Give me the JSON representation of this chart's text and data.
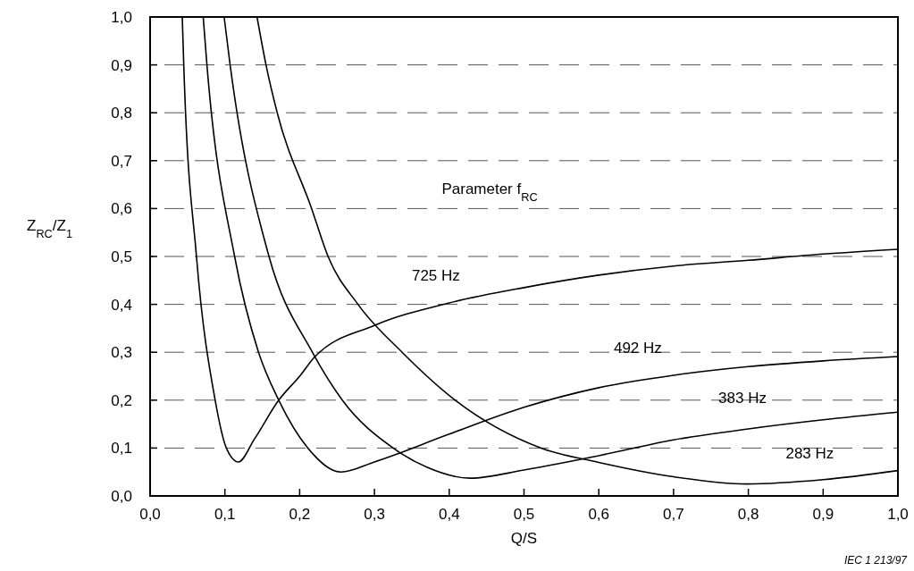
{
  "chart_data": {
    "type": "line",
    "xlabel": "Q/S",
    "ylabel": "Z$_{RC}$/Z$_{1}$",
    "xlim": [
      0,
      1
    ],
    "ylim": [
      0,
      1
    ],
    "xticks": [
      {
        "value": 0,
        "label": "0,0"
      },
      {
        "value": 0.1,
        "label": "0,1"
      },
      {
        "value": 0.2,
        "label": "0,2"
      },
      {
        "value": 0.3,
        "label": "0,3"
      },
      {
        "value": 0.4,
        "label": "0,4"
      },
      {
        "value": 0.5,
        "label": "0,5"
      },
      {
        "value": 0.6,
        "label": "0,6"
      },
      {
        "value": 0.7,
        "label": "0,7"
      },
      {
        "value": 0.8,
        "label": "0,8"
      },
      {
        "value": 0.9,
        "label": "0,9"
      },
      {
        "value": 1,
        "label": "1,0"
      }
    ],
    "yticks": [
      {
        "value": 0,
        "label": "0,0"
      },
      {
        "value": 0.1,
        "label": "0,1"
      },
      {
        "value": 0.2,
        "label": "0,2"
      },
      {
        "value": 0.3,
        "label": "0,3"
      },
      {
        "value": 0.4,
        "label": "0,4"
      },
      {
        "value": 0.5,
        "label": "0,5"
      },
      {
        "value": 0.6,
        "label": "0,6"
      },
      {
        "value": 0.7,
        "label": "0,7"
      },
      {
        "value": 0.8,
        "label": "0,8"
      },
      {
        "value": 0.9,
        "label": "0,9"
      },
      {
        "value": 1,
        "label": "1,0"
      }
    ],
    "grid": "y",
    "line_style": "solid",
    "series": [
      {
        "name": "725 Hz",
        "color": "#000000",
        "x": [
          0.043,
          0.045,
          0.062,
          0.087,
          0.102,
          0.118,
          0.14,
          0.172,
          0.2,
          0.22,
          0.3,
          0.4,
          0.5,
          0.6,
          0.7,
          0.8,
          0.9,
          1.0
        ],
        "values": [
          1,
          0.9,
          0.5,
          0.2,
          0.1,
          0.071,
          0.12,
          0.2,
          0.25,
          0.29,
          0.356,
          0.403,
          0.435,
          0.461,
          0.48,
          0.492,
          0.505,
          0.515
        ]
      },
      {
        "name": "492 Hz",
        "color": "#000000",
        "x": [
          0.071,
          0.076,
          0.113,
          0.145,
          0.172,
          0.211,
          0.255,
          0.3,
          0.4,
          0.5,
          0.6,
          0.7,
          0.8,
          0.9,
          1.0
        ],
        "values": [
          1,
          0.9,
          0.5,
          0.3,
          0.2,
          0.1,
          0.05,
          0.071,
          0.129,
          0.185,
          0.226,
          0.252,
          0.27,
          0.282,
          0.291
        ]
      },
      {
        "name": "383 Hz",
        "color": "#000000",
        "x": [
          0.099,
          0.107,
          0.159,
          0.217,
          0.257,
          0.325,
          0.37,
          0.428,
          0.5,
          0.6,
          0.7,
          0.8,
          0.9,
          1.0
        ],
        "values": [
          1,
          0.9,
          0.5,
          0.3,
          0.2,
          0.1,
          0.06,
          0.037,
          0.054,
          0.084,
          0.117,
          0.14,
          0.159,
          0.175
        ]
      },
      {
        "name": "283 Hz",
        "color": "#000000",
        "x": [
          0.143,
          0.155,
          0.17,
          0.216,
          0.238,
          0.278,
          0.337,
          0.408,
          0.523,
          0.6,
          0.7,
          0.798,
          0.9,
          1.0
        ],
        "values": [
          1,
          0.9,
          0.8,
          0.6,
          0.5,
          0.4,
          0.3,
          0.2,
          0.1,
          0.07,
          0.04,
          0.025,
          0.034,
          0.053
        ]
      }
    ],
    "annotations": [
      "Parameter f$_{RC}$",
      "IEC 1 213/97"
    ]
  }
}
